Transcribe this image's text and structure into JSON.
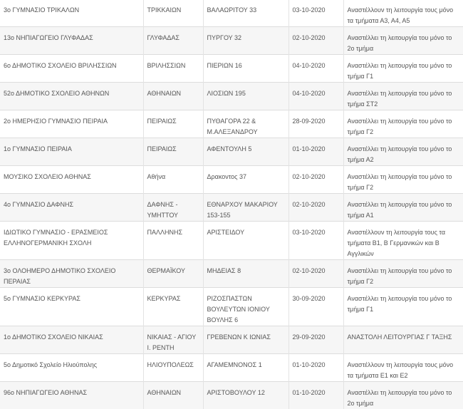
{
  "rows": [
    {
      "school": "3ο ΓΥΜΝΑΣΙΟ ΤΡΙΚΑΛΩΝ",
      "municipality": "ΤΡΙΚΚΑΙΩΝ",
      "address": "ΒΑΛΑΩΡΙΤΟΥ 33",
      "date": "03-10-2020",
      "note": "Αναστέλλουν τη λειτουργία τους μόνο τα τμήματα Α3, Α4, Α5"
    },
    {
      "school": "13ο ΝΗΠΙΑΓΩΓΕΙΟ ΓΛΥΦΑΔΑΣ",
      "municipality": "ΓΛΥΦΑΔΑΣ",
      "address": "ΠΥΡΓΟΥ 32",
      "date": "02-10-2020",
      "note": "Αναστέλλει τη λειτουργία του μόνο το 2ο τμήμα"
    },
    {
      "school": "6ο ΔΗΜΟΤΙΚΟ ΣΧΟΛΕΙΟ ΒΡΙΛΗΣΣΙΩΝ",
      "municipality": "ΒΡΙΛΗΣΣΙΩΝ",
      "address": "ΠΙΕΡΙΩΝ 16",
      "date": "04-10-2020",
      "note": "Αναστέλλει τη λειτουργία του μόνο το τμήμα Γ1"
    },
    {
      "school": "52ο ΔΗΜΟΤΙΚΟ ΣΧΟΛΕΙΟ ΑΘΗΝΩΝ",
      "municipality": "ΑΘΗΝΑΙΩΝ",
      "address": "ΛΙΟΣΙΩΝ 195",
      "date": "04-10-2020",
      "note": "Αναστέλλει τη λειτουργία του μόνο το τμήμα ΣΤ2"
    },
    {
      "school": "2ο ΗΜΕΡΗΣΙΟ ΓΥΜΝΑΣΙΟ ΠΕΙΡΑΙΑ",
      "municipality": "ΠΕΙΡΑΙΩΣ",
      "address": "ΠΥΘΑΓΟΡΑ 22 & Μ.ΑΛΕΞΑΝΔΡΟΥ",
      "date": "28-09-2020",
      "note": "Αναστέλλει τη λειτουργία του μόνο το τμήμα Γ2"
    },
    {
      "school": "1ο ΓΥΜΝΑΣΙΟ ΠΕΙΡΑΙΑ",
      "municipality": "ΠΕΙΡΑΙΩΣ",
      "address": "ΑΦΕΝΤΟΥΛΗ 5",
      "date": "01-10-2020",
      "note": "Αναστέλλει τη λειτουργία του μόνο το τμήμα Α2"
    },
    {
      "school": "ΜΟΥΣΙΚΟ ΣΧΟΛΕΙΟ ΑΘΗΝΑΣ",
      "municipality": "Αθήνα",
      "address": "Δρακοντος 37",
      "date": "02-10-2020",
      "note": "Αναστέλλει τη λειτουργία του μόνο το τμήμα Γ2"
    },
    {
      "school": "4ο ΓΥΜΝΑΣΙΟ ΔΑΦΝΗΣ",
      "municipality": "ΔΑΦΝΗΣ - ΥΜΗΤΤΟΥ",
      "address": "ΕΘΝΑΡΧΟΥ ΜΑΚΑΡΙΟΥ 153-155",
      "date": "02-10-2020",
      "note": "Αναστέλλει τη λειτουργία του μόνο το τμήμα Α1"
    },
    {
      "school": "ΙΔΙΩΤΙΚΟ ΓΥΜΝΑΣΙΟ - ΕΡΑΣΜΕΙΟΣ ΕΛΛΗΝΟΓΕΡΜΑΝΙΚΗ ΣΧΟΛΗ",
      "municipality": "ΠΑΛΛΗΝΗΣ",
      "address": "ΑΡΙΣΤΕΙΔΟΥ",
      "date": "03-10-2020",
      "note": "Αναστέλλουν τη λειτουργία τους τα τμήματα Β1, Β Γερμανικών και Β Αγγλικών"
    },
    {
      "school": "3ο ΟΛΟΗΜΕΡΟ ΔΗΜΟΤΙΚΟ ΣΧΟΛΕΙΟ ΠΕΡΑΙΑΣ",
      "municipality": "ΘΕΡΜΑΪΚΟΥ",
      "address": "ΜΗΔΕΙΑΣ 8",
      "date": "02-10-2020",
      "note": "Αναστέλλει τη λειτουργία του μόνο το τμήμα Γ2"
    },
    {
      "school": "5ο ΓΥΜΝΑΣΙΟ ΚΕΡΚΥΡΑΣ",
      "municipality": "ΚΕΡΚΥΡΑΣ",
      "address": "ΡΙΖΟΣΠΑΣΤΩΝ ΒΟΥΛΕΥΤΩΝ ΙΟΝΙΟΥ ΒΟΥΛΗΣ 6",
      "date": "30-09-2020",
      "note": "Αναστέλλει τη λειτουργία του μόνο το τμήμα Γ1"
    },
    {
      "school": "1ο ΔΗΜΟΤΙΚΟ ΣΧΟΛΕΙΟ ΝΙΚΑΙΑΣ",
      "municipality": "ΝΙΚΑΙΑΣ - ΑΓΙΟΥ Ι. ΡΕΝΤΗ",
      "address": "ΓΡΕΒΕΝΩΝ Κ ΙΩΝΙΑΣ",
      "date": "29-09-2020",
      "note": "ΑΝΑΣΤΟΛΗ ΛΕΙΤΟΥΡΓΙΑΣ Γ ΤΑΞΗΣ"
    },
    {
      "school": "5ο Δημοτικό Σχολείο Ηλιούπολης",
      "municipality": "ΗΛΙΟΥΠΟΛΕΩΣ",
      "address": "ΑΓΑΜΕΜΝΟΝΟΣ 1",
      "date": "01-10-2020",
      "note": "Αναστέλλουν τη λειτουργία τους μόνο τα τμήματα Ε1 και Ε2"
    },
    {
      "school": "96ο ΝΗΠΙΑΓΩΓΕΙΟ ΑΘΗΝΑΣ",
      "municipality": "ΑΘΗΝΑΙΩΝ",
      "address": "ΑΡΙΣΤΟΒΟΥΛΟΥ 12",
      "date": "01-10-2020",
      "note": "Αναστέλλει τη λειτουργία του μόνο το 2ο τμήμα"
    }
  ]
}
